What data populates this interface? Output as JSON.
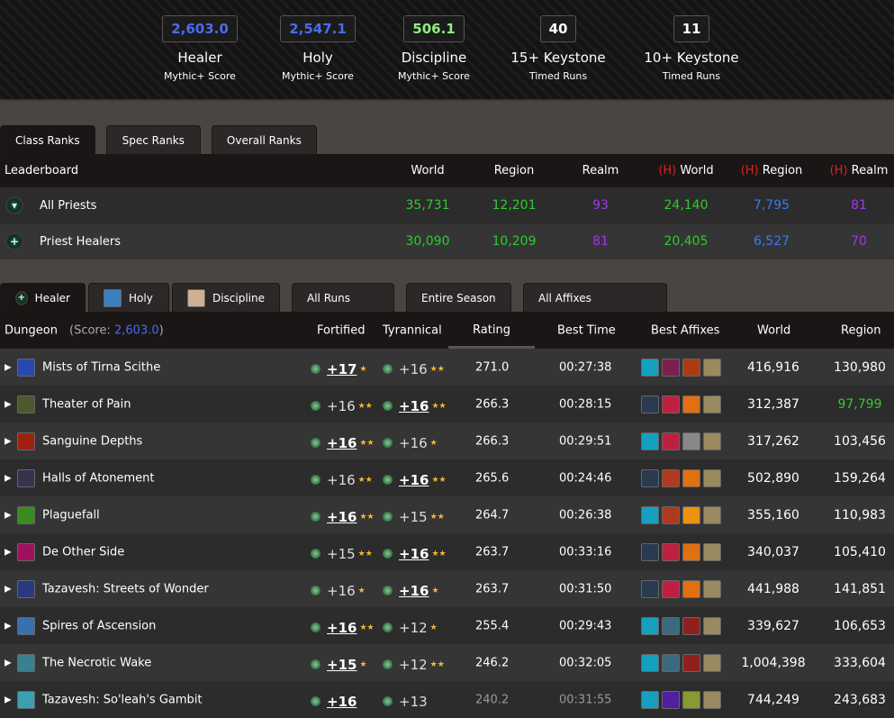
{
  "stats": [
    {
      "value": "2,603.0",
      "title": "Healer",
      "sub": "Mythic+ Score",
      "color": "#4a6cf0"
    },
    {
      "value": "2,547.1",
      "title": "Holy",
      "sub": "Mythic+ Score",
      "color": "#4a6cf0"
    },
    {
      "value": "506.1",
      "title": "Discipline",
      "sub": "Mythic+ Score",
      "color": "#8ef07a"
    },
    {
      "value": "40",
      "title": "15+ Keystone",
      "sub": "Timed Runs",
      "color": "#ffffff"
    },
    {
      "value": "11",
      "title": "10+ Keystone",
      "sub": "Timed Runs",
      "color": "#ffffff"
    }
  ],
  "rank_tabs": [
    "Class Ranks",
    "Spec Ranks",
    "Overall Ranks"
  ],
  "rank_table": {
    "headers": [
      "Leaderboard",
      "World",
      "Region",
      "Realm",
      "World",
      "Region",
      "Realm"
    ],
    "h_tag": "(H)",
    "rows": [
      {
        "name": "All Priests",
        "icon": "priest-class-icon",
        "values": [
          "35,731",
          "12,201",
          "93",
          "24,140",
          "7,795",
          "81"
        ]
      },
      {
        "name": "Priest Healers",
        "icon": "healer-role-icon",
        "values": [
          "30,090",
          "10,209",
          "81",
          "20,405",
          "6,527",
          "70"
        ]
      }
    ],
    "colors": [
      "#2ecc2e",
      "#2ecc2e",
      "#a335ee",
      "#2ecc2e",
      "#3a7bf0",
      "#a335ee"
    ]
  },
  "spec_tabs": [
    {
      "label": "Healer",
      "icon": "healer-role-icon"
    },
    {
      "label": "Holy",
      "icon": "holy-spec-icon"
    },
    {
      "label": "Discipline",
      "icon": "discipline-spec-icon"
    }
  ],
  "filter_tabs": [
    "All Runs",
    "Entire Season",
    "All Affixes"
  ],
  "dungeon_table": {
    "headers": {
      "dungeon": "Dungeon",
      "score_label": "(Score: ",
      "score": "2,603.0",
      "score_close": ")",
      "fortified": "Fortified",
      "tyrannical": "Tyrannical",
      "rating": "Rating",
      "best_time": "Best Time",
      "best_affixes": "Best Affixes",
      "world": "World",
      "region": "Region"
    },
    "rows": [
      {
        "name": "Mists of Tirna Scithe",
        "icon_color": "#2a48b0",
        "fort": {
          "level": "+17",
          "best": true,
          "stars": 1
        },
        "tyr": {
          "level": "+16",
          "best": false,
          "stars": 2
        },
        "rating": "271.0",
        "time": "00:27:38",
        "affixes": [
          "#15a0c0",
          "#7a2050",
          "#b03a10",
          "#9a8a60"
        ],
        "world": "416,916",
        "region": "130,980",
        "region_color": "#ffffff",
        "timed": true
      },
      {
        "name": "Theater of Pain",
        "icon_color": "#4a5a2a",
        "fort": {
          "level": "+16",
          "best": false,
          "stars": 2
        },
        "tyr": {
          "level": "+16",
          "best": true,
          "stars": 2
        },
        "rating": "266.3",
        "time": "00:28:15",
        "affixes": [
          "#2a3a50",
          "#c02040",
          "#e07010",
          "#9a8a60"
        ],
        "world": "312,387",
        "region": "97,799",
        "region_color": "#2ecc2e",
        "timed": true
      },
      {
        "name": "Sanguine Depths",
        "icon_color": "#a02010",
        "fort": {
          "level": "+16",
          "best": true,
          "stars": 2
        },
        "tyr": {
          "level": "+16",
          "best": false,
          "stars": 1
        },
        "rating": "266.3",
        "time": "00:29:51",
        "affixes": [
          "#15a0c0",
          "#c02040",
          "#888888",
          "#9a8a60"
        ],
        "world": "317,262",
        "region": "103,456",
        "region_color": "#ffffff",
        "timed": true
      },
      {
        "name": "Halls of Atonement",
        "icon_color": "#3a3050",
        "fort": {
          "level": "+16",
          "best": false,
          "stars": 2
        },
        "tyr": {
          "level": "+16",
          "best": true,
          "stars": 2
        },
        "rating": "265.6",
        "time": "00:24:46",
        "affixes": [
          "#2a3a50",
          "#b03a20",
          "#e07010",
          "#9a8a60"
        ],
        "world": "502,890",
        "region": "159,264",
        "region_color": "#ffffff",
        "timed": true
      },
      {
        "name": "Plaguefall",
        "icon_color": "#3a8a20",
        "fort": {
          "level": "+16",
          "best": true,
          "stars": 2
        },
        "tyr": {
          "level": "+15",
          "best": false,
          "stars": 2
        },
        "rating": "264.7",
        "time": "00:26:38",
        "affixes": [
          "#15a0c0",
          "#b03a20",
          "#f09010",
          "#9a8a60"
        ],
        "world": "355,160",
        "region": "110,983",
        "region_color": "#ffffff",
        "timed": true
      },
      {
        "name": "De Other Side",
        "icon_color": "#a01060",
        "fort": {
          "level": "+15",
          "best": false,
          "stars": 2
        },
        "tyr": {
          "level": "+16",
          "best": true,
          "stars": 2
        },
        "rating": "263.7",
        "time": "00:33:16",
        "affixes": [
          "#2a3a50",
          "#c02040",
          "#e07010",
          "#9a8a60"
        ],
        "world": "340,037",
        "region": "105,410",
        "region_color": "#ffffff",
        "timed": true
      },
      {
        "name": "Tazavesh: Streets of Wonder",
        "icon_color": "#2a3a80",
        "fort": {
          "level": "+16",
          "best": false,
          "stars": 1
        },
        "tyr": {
          "level": "+16",
          "best": true,
          "stars": 1
        },
        "rating": "263.7",
        "time": "00:31:50",
        "affixes": [
          "#2a3a50",
          "#c02040",
          "#e07010",
          "#9a8a60"
        ],
        "world": "441,988",
        "region": "141,851",
        "region_color": "#ffffff",
        "timed": true
      },
      {
        "name": "Spires of Ascension",
        "icon_color": "#3a70b0",
        "fort": {
          "level": "+16",
          "best": true,
          "stars": 2
        },
        "tyr": {
          "level": "+12",
          "best": false,
          "stars": 1
        },
        "rating": "255.4",
        "time": "00:29:43",
        "affixes": [
          "#15a0c0",
          "#3a6a80",
          "#902020",
          "#9a8a60"
        ],
        "world": "339,627",
        "region": "106,653",
        "region_color": "#ffffff",
        "timed": true
      },
      {
        "name": "The Necrotic Wake",
        "icon_color": "#3a8090",
        "fort": {
          "level": "+15",
          "best": true,
          "stars": 1
        },
        "tyr": {
          "level": "+12",
          "best": false,
          "stars": 2
        },
        "rating": "246.2",
        "time": "00:32:05",
        "affixes": [
          "#15a0c0",
          "#3a6a80",
          "#902020",
          "#9a8a60"
        ],
        "world": "1,004,398",
        "region": "333,604",
        "region_color": "#ffffff",
        "timed": true
      },
      {
        "name": "Tazavesh: So'leah's Gambit",
        "icon_color": "#3aa0b0",
        "fort": {
          "level": "+16",
          "best": true,
          "stars": 0
        },
        "tyr": {
          "level": "+13",
          "best": false,
          "stars": 0
        },
        "rating": "240.2",
        "time": "00:31:55",
        "affixes": [
          "#15a0c0",
          "#5020a0",
          "#8a9a30",
          "#9a8a60"
        ],
        "world": "744,249",
        "region": "243,683",
        "region_color": "#ffffff",
        "timed": false
      }
    ]
  }
}
